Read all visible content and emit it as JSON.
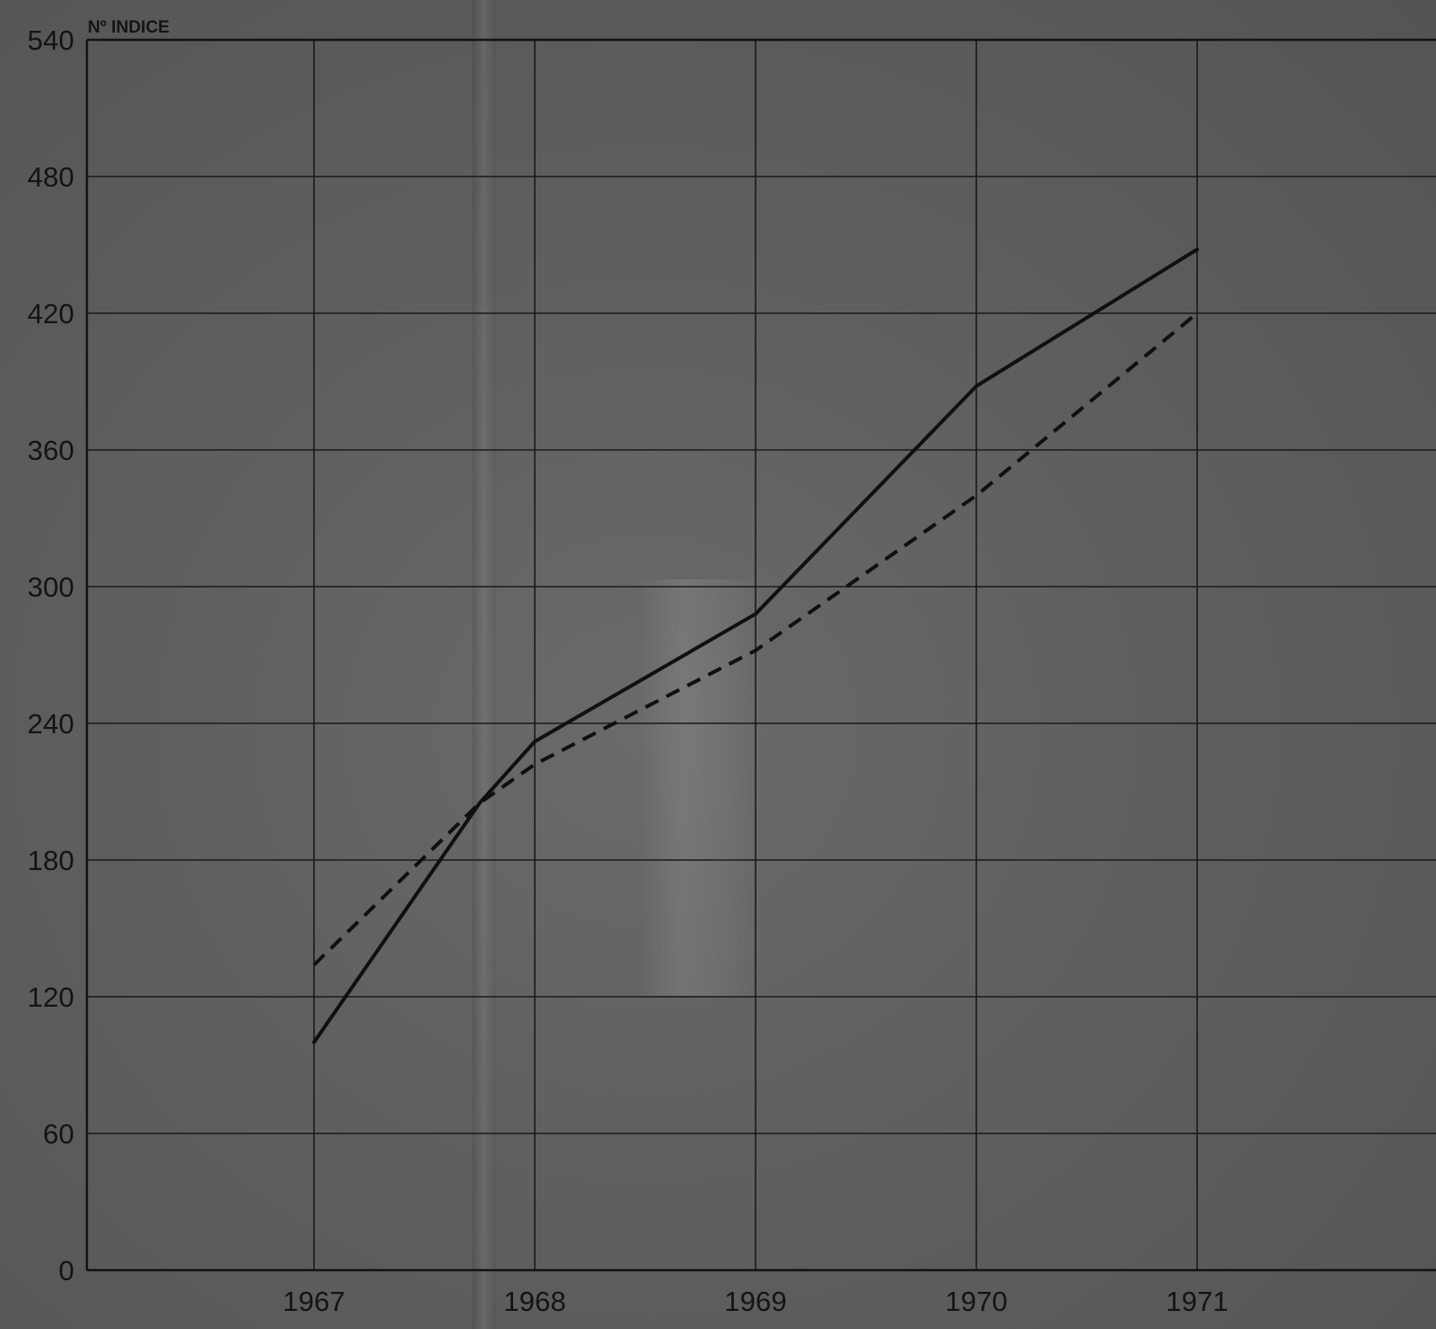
{
  "chart_data": {
    "type": "line",
    "ylabel": "Nº INDICE",
    "xlabel": "",
    "title": "",
    "x": [
      1967,
      1968,
      1969,
      1970,
      1971
    ],
    "x_ticks": [
      "1967",
      "1968",
      "1969",
      "1970",
      "1971"
    ],
    "y_ticks": [
      "0",
      "60",
      "120",
      "180",
      "240",
      "300",
      "360",
      "420",
      "480",
      "540"
    ],
    "xlim": [
      1966,
      1971.9
    ],
    "ylim": [
      0,
      540
    ],
    "grid": true,
    "legend": "none",
    "series": [
      {
        "style": "solid",
        "color": "#101010",
        "points": [
          [
            1967.0,
            100
          ],
          [
            1967.75,
            205
          ],
          [
            1968.0,
            232
          ],
          [
            1969.0,
            288
          ],
          [
            1970.0,
            388
          ],
          [
            1971.0,
            448
          ]
        ]
      },
      {
        "style": "dashed",
        "color": "#101010",
        "points": [
          [
            1967.0,
            134
          ],
          [
            1967.75,
            205
          ],
          [
            1968.0,
            222
          ],
          [
            1969.0,
            272
          ],
          [
            1970.0,
            340
          ],
          [
            1971.0,
            420
          ]
        ]
      }
    ]
  }
}
